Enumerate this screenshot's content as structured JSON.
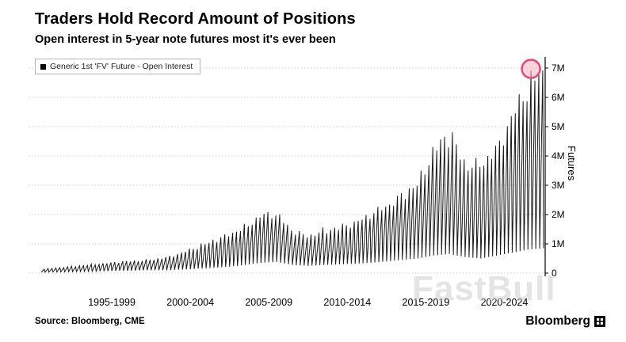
{
  "header": {
    "title": "Traders Hold Record Amount of Positions",
    "subtitle": "Open interest in 5-year note futures most it's ever been"
  },
  "legend": {
    "label": "Generic 1st 'FV' Future - Open Interest"
  },
  "watermark": "FastBull",
  "footer": {
    "source": "Source: Bloomberg, CME",
    "brand": "Bloomberg"
  },
  "colors": {
    "background": "#ffffff",
    "text": "#000000",
    "series": "#1a1a1a",
    "grid": "#c9c9c9",
    "axis": "#000000",
    "highlight_stroke": "#e24a72",
    "highlight_fill": "#f6b3c3",
    "watermark": "#d2d2d2"
  },
  "chart_data": {
    "type": "line",
    "title": "Traders Hold Record Amount of Positions",
    "subtitle": "Open interest in 5-year note futures most it's ever been",
    "series_name": "Generic 1st 'FV' Future - Open Interest",
    "ylabel": "Futures",
    "pattern": "quarterly contract-roll sawtooth: open interest builds to a peak each quarter then collapses to a trough; envelope of yearly peak/trough values given below",
    "grid": "horizontal dashed, axis on right",
    "legend_position": "top-left",
    "x_range": [
      1992.5,
      2025.1
    ],
    "ylim_millions": [
      0,
      7
    ],
    "ytick_values": [
      0,
      1,
      2,
      3,
      4,
      5,
      6,
      7
    ],
    "ytick_labels": [
      "0",
      "1M",
      "2M",
      "3M",
      "4M",
      "5M",
      "6M",
      "7M"
    ],
    "xticks": [
      {
        "label": "1995-1999",
        "x_year": 1997.5
      },
      {
        "label": "2000-2004",
        "x_year": 2002.5
      },
      {
        "label": "2005-2009",
        "x_year": 2007.5
      },
      {
        "label": "2010-2014",
        "x_year": 2012.5
      },
      {
        "label": "2015-2019",
        "x_year": 2017.5
      },
      {
        "label": "2020-2024",
        "x_year": 2022.5
      }
    ],
    "years": [
      1993,
      1994,
      1995,
      1996,
      1997,
      1998,
      1999,
      2000,
      2001,
      2002,
      2003,
      2004,
      2005,
      2006,
      2007,
      2008,
      2009,
      2010,
      2011,
      2012,
      2013,
      2014,
      2015,
      2016,
      2017,
      2018,
      2019,
      2020,
      2021,
      2022,
      2023,
      2024,
      2025
    ],
    "peaks_millions": [
      0.12,
      0.18,
      0.22,
      0.28,
      0.33,
      0.38,
      0.42,
      0.45,
      0.55,
      0.7,
      0.9,
      1.1,
      1.3,
      1.6,
      1.95,
      2.05,
      1.4,
      1.25,
      1.45,
      1.55,
      1.75,
      1.95,
      2.3,
      2.6,
      3.1,
      4.2,
      4.7,
      3.7,
      3.6,
      4.3,
      5.3,
      6.4,
      7.0
    ],
    "troughs_millions": [
      0.03,
      0.04,
      0.05,
      0.06,
      0.07,
      0.08,
      0.09,
      0.1,
      0.1,
      0.12,
      0.15,
      0.18,
      0.22,
      0.28,
      0.35,
      0.38,
      0.28,
      0.25,
      0.28,
      0.3,
      0.32,
      0.35,
      0.4,
      0.45,
      0.5,
      0.6,
      0.65,
      0.55,
      0.5,
      0.6,
      0.7,
      0.8,
      0.85
    ],
    "highlight": {
      "note": "record open interest circled in pink",
      "x_year": 2024.9,
      "value_millions": 6.9
    }
  }
}
